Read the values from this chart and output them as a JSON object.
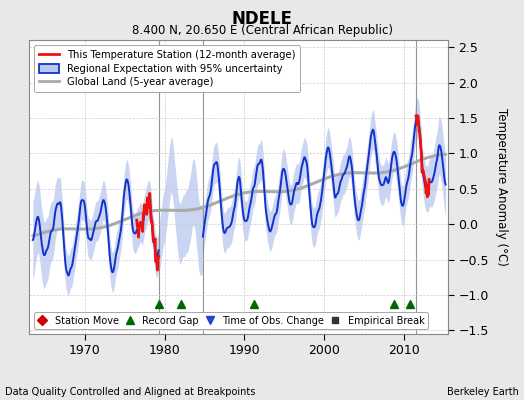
{
  "title": "NDELE",
  "subtitle": "8.400 N, 20.650 E (Central African Republic)",
  "ylabel": "Temperature Anomaly (°C)",
  "xlabel_bottom_left": "Data Quality Controlled and Aligned at Breakpoints",
  "xlabel_bottom_right": "Berkeley Earth",
  "ylim": [
    -1.55,
    2.6
  ],
  "xlim": [
    1963,
    2015.5
  ],
  "yticks": [
    -1.5,
    -1.0,
    -0.5,
    0.0,
    0.5,
    1.0,
    1.5,
    2.0,
    2.5
  ],
  "xticks": [
    1970,
    1980,
    1990,
    2000,
    2010
  ],
  "shading_color": "#b8c8ee",
  "regional_line_color": "#1133cc",
  "station_line_color": "#ee1111",
  "global_land_color": "#aaaaaa",
  "fig_bg_color": "#e8e8e8",
  "plot_bg_color": "#ffffff",
  "legend_items": [
    {
      "label": "This Temperature Station (12-month average)"
    },
    {
      "label": "Regional Expectation with 95% uncertainty"
    },
    {
      "label": "Global Land (5-year average)"
    }
  ],
  "marker_legend": [
    {
      "label": "Station Move",
      "color": "#cc0000",
      "marker": "D"
    },
    {
      "label": "Record Gap",
      "color": "#006600",
      "marker": "^"
    },
    {
      "label": "Time of Obs. Change",
      "color": "#2244cc",
      "marker": "v"
    },
    {
      "label": "Empirical Break",
      "color": "#333333",
      "marker": "s"
    }
  ],
  "green_triangles_x": [
    1979.3,
    1982.0,
    1991.2,
    2008.7,
    2010.8
  ],
  "vlines_x": [
    1979.3,
    1984.8,
    2011.5
  ],
  "gap_start": 1979.3,
  "gap_end": 1984.8,
  "station1_start": 1976.5,
  "station1_end": 1979.3,
  "station2_start": 2011.5,
  "station2_end": 2013.2
}
